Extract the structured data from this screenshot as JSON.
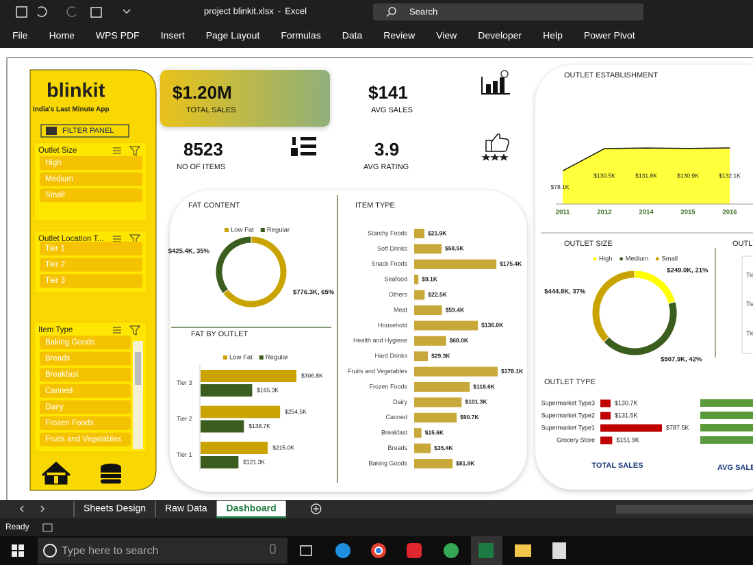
{
  "window": {
    "filename": "project blinkit.xlsx",
    "separator": "-",
    "app": "Excel",
    "search": "Search"
  },
  "menu": [
    "File",
    "Home",
    "WPS PDF",
    "Insert",
    "Page Layout",
    "Formulas",
    "Data",
    "Review",
    "View",
    "Developer",
    "Help",
    "Power Pivot"
  ],
  "sidebar": {
    "logo": "blinkit",
    "tagline": "India's Last Minute App",
    "filter_panel": "FILTER PANEL",
    "slicers": [
      {
        "title": "Outlet Size",
        "items": [
          "High",
          "Medium",
          "Small"
        ]
      },
      {
        "title": "Outlet Location T...",
        "items": [
          "Tier 1",
          "Tier 2",
          "Tier 3"
        ]
      },
      {
        "title": "Item Type",
        "items": [
          "Baking Goods",
          "Breads",
          "Breakfast",
          "Canned",
          "Dairy",
          "Frozen Foods",
          "Fruits and Vegetables"
        ]
      }
    ]
  },
  "kpis": [
    {
      "value": "$1.20M",
      "label": "TOTAL SALES"
    },
    {
      "value": "$141",
      "label": "AVG SALES"
    },
    {
      "value": "8523",
      "label": "NO OF ITEMS"
    },
    {
      "value": "3.9",
      "label": "AVG RATING"
    }
  ],
  "fat_content": {
    "type": "donut",
    "title": "FAT  CONTENT",
    "categories": [
      "Low Fat",
      "Regular"
    ],
    "values": [
      776.3,
      425.4
    ],
    "value_labels": [
      "$776.3K, 65%",
      "$425.4K, 35%"
    ],
    "colors": [
      "#c9a400",
      "#3b5e1e"
    ]
  },
  "fat_by_outlet": {
    "type": "hbar",
    "title": "FAT BY OUTLET",
    "categories": [
      "Tier 3",
      "Tier 2",
      "Tier 1"
    ],
    "series": [
      {
        "name": "Low Fat",
        "color": "#c9a400",
        "values": [
          306.8,
          254.5,
          215.0
        ],
        "value_labels": [
          "$306.8K",
          "$254.5K",
          "$215.0K"
        ]
      },
      {
        "name": "Regular",
        "color": "#3b5e1e",
        "values": [
          165.3,
          138.7,
          121.3
        ],
        "value_labels": [
          "$165.3K",
          "$138.7K",
          "$121.3K"
        ]
      }
    ]
  },
  "item_type": {
    "type": "hbar",
    "title": "ITEM TYPE",
    "color": "#c9a83a",
    "categories": [
      "Starchy Foods",
      "Soft Drinks",
      "Snack Foods",
      "Seafood",
      "Others",
      "Meat",
      "Household",
      "Health and Hygiene",
      "Hard Drinks",
      "Fruits and Vegetables",
      "Frozen Foods",
      "Dairy",
      "Canned",
      "Breakfast",
      "Breads",
      "Baking Goods"
    ],
    "values": [
      21.9,
      58.5,
      175.4,
      9.1,
      22.5,
      59.4,
      136.0,
      68.0,
      29.3,
      178.1,
      118.6,
      101.3,
      90.7,
      15.6,
      35.4,
      81.9
    ],
    "value_labels": [
      "$21.9K",
      "$58.5K",
      "$175.4K",
      "$9.1K",
      "$22.5K",
      "$59.4K",
      "$136.0K",
      "$68.0K",
      "$29.3K",
      "$178.1K",
      "$118.6K",
      "$101.3K",
      "$90.7K",
      "$15.6K",
      "$35.4K",
      "$81.9K"
    ]
  },
  "outlet_establishment": {
    "type": "area",
    "title": "OUTLET ESTABLISHMENT",
    "color": "#ffff3c",
    "categories": [
      "2011",
      "2012",
      "2014",
      "2015",
      "2016"
    ],
    "values": [
      78.1,
      130.5,
      131.8,
      130.9,
      132.1
    ],
    "value_labels": [
      "$78.1K",
      "$130.5K",
      "$131.8K",
      "$130.9K",
      "$132.1K"
    ]
  },
  "outlet_size": {
    "type": "donut",
    "title": "OUTLET SIZE",
    "categories": [
      "High",
      "Medium",
      "Small"
    ],
    "values": [
      249.0,
      507.9,
      444.8
    ],
    "value_labels": [
      "$249.0K, 21%",
      "$507.9K, 42%",
      "$444.8K, 37%"
    ],
    "colors": [
      "#ffff00",
      "#3b5e1e",
      "#c9a400"
    ]
  },
  "outlet_location": {
    "title": "OUTL",
    "labels": [
      "Tie",
      "Tie",
      "Tie"
    ]
  },
  "outlet_type": {
    "type": "hbar",
    "title": "OUTLET TYPE",
    "color": "#c00000",
    "categories": [
      "Supermarket Type3",
      "Supermarket Type2",
      "Supermarket Type1",
      "Grocery Store"
    ],
    "values": [
      130.7,
      131.5,
      787.5,
      151.9
    ],
    "value_labels": [
      "$130.7K",
      "$131.5K",
      "$787.5K",
      "$151.9K"
    ],
    "footer": "TOTAL SALES",
    "side_footer": "AVG SALE"
  },
  "sheet_tabs": [
    {
      "label": "Sheets Design"
    },
    {
      "label": "Raw Data"
    },
    {
      "label": "Dashboard",
      "active": true
    }
  ],
  "status": "Ready",
  "taskbar": {
    "search": "Type here to search"
  }
}
